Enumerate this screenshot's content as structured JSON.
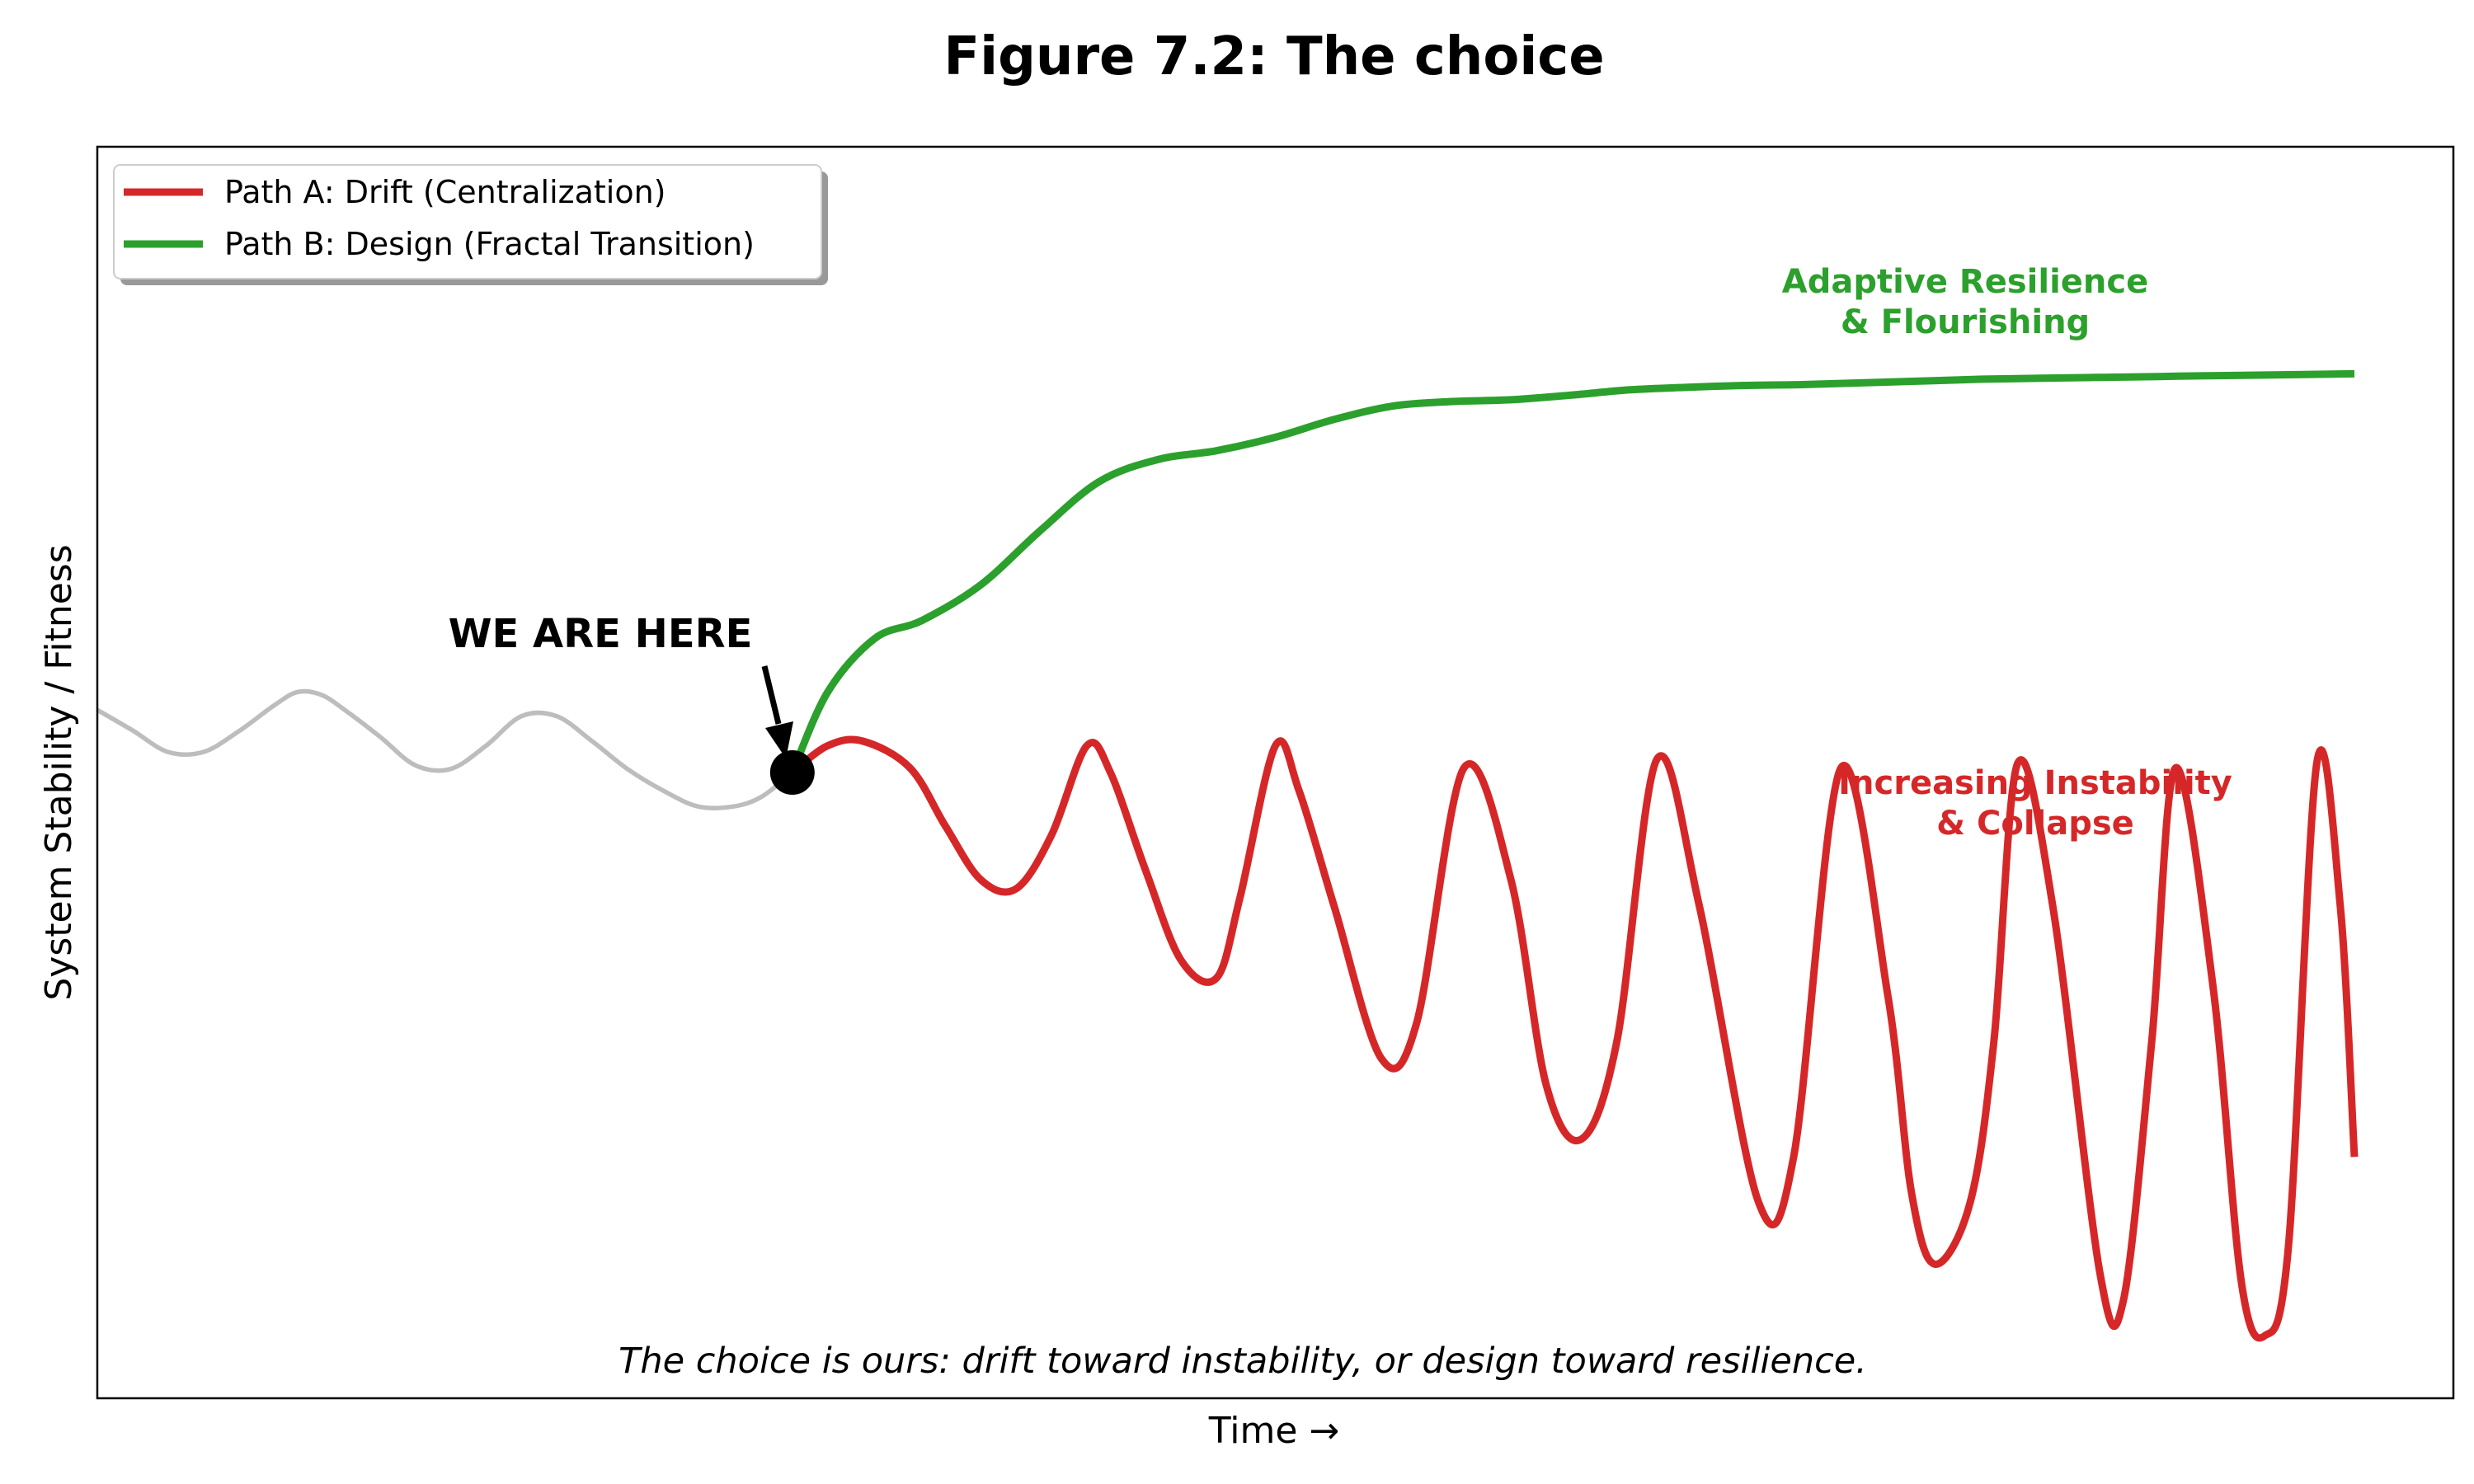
{
  "figure": {
    "title": "Figure 7.2: The choice",
    "xlabel": "Time →",
    "ylabel": "System Stability / Fitness"
  },
  "legend": {
    "items": [
      {
        "label": "Path A: Drift (Centralization)",
        "color": "#d62728"
      },
      {
        "label": "Path B: Design (Fractal Transition)",
        "color": "#2ca02c"
      }
    ]
  },
  "annotations": {
    "green_line1": "Adaptive Resilience",
    "green_line2": "& Flourishing",
    "red_line1": "Increasing Instability",
    "red_line2": "& Collapse",
    "here": "WE ARE HERE",
    "caption": "The choice is ours: drift toward instability, or design toward resilience."
  },
  "chart_data": {
    "type": "line",
    "title": "Figure 7.2: The choice",
    "xlabel": "Time →",
    "ylabel": "System Stability / Fitness",
    "xlim": [
      0,
      10
    ],
    "ylim": [
      -7,
      7
    ],
    "grid": false,
    "legend_position": "top-left",
    "branch_point": {
      "x": 2.95,
      "y": 0
    },
    "series": [
      {
        "color": "#bdbdbd",
        "points": [
          [
            0,
            0.7
          ],
          [
            0.15,
            0.47
          ],
          [
            0.3,
            0.23
          ],
          [
            0.45,
            0.23
          ],
          [
            0.6,
            0.46
          ],
          [
            0.75,
            0.75
          ],
          [
            0.85,
            0.9
          ],
          [
            0.95,
            0.87
          ],
          [
            1.05,
            0.7
          ],
          [
            1.2,
            0.4
          ],
          [
            1.35,
            0.08
          ],
          [
            1.5,
            0.04
          ],
          [
            1.65,
            0.3
          ],
          [
            1.8,
            0.63
          ],
          [
            1.95,
            0.63
          ],
          [
            2.1,
            0.35
          ],
          [
            2.25,
            0.04
          ],
          [
            2.4,
            -0.2
          ],
          [
            2.55,
            -0.38
          ],
          [
            2.7,
            -0.38
          ],
          [
            2.82,
            -0.27
          ],
          [
            2.95,
            0
          ]
        ]
      },
      {
        "name": "Path A: Drift (Centralization)",
        "color": "#d62728",
        "points": [
          [
            2.95,
            0
          ],
          [
            3.1,
            0.3
          ],
          [
            3.25,
            0.35
          ],
          [
            3.45,
            0.05
          ],
          [
            3.6,
            -0.6
          ],
          [
            3.75,
            -1.2
          ],
          [
            3.9,
            -1.3
          ],
          [
            4.05,
            -0.7
          ],
          [
            4.2,
            0.3
          ],
          [
            4.3,
            0
          ],
          [
            4.45,
            -1.1
          ],
          [
            4.6,
            -2.1
          ],
          [
            4.75,
            -2.3
          ],
          [
            4.85,
            -1.4
          ],
          [
            5.0,
            0.3
          ],
          [
            5.1,
            -0.2
          ],
          [
            5.25,
            -1.5
          ],
          [
            5.45,
            -3.2
          ],
          [
            5.6,
            -2.8
          ],
          [
            5.8,
            0.05
          ],
          [
            6.0,
            -1.2
          ],
          [
            6.15,
            -3.5
          ],
          [
            6.3,
            -4.1
          ],
          [
            6.45,
            -3
          ],
          [
            6.62,
            0.15
          ],
          [
            6.8,
            -1.5
          ],
          [
            7.05,
            -4.8
          ],
          [
            7.2,
            -4.3
          ],
          [
            7.4,
            0.05
          ],
          [
            7.6,
            -2.5
          ],
          [
            7.7,
            -4.7
          ],
          [
            7.8,
            -5.5
          ],
          [
            7.95,
            -4.8
          ],
          [
            8.05,
            -3
          ],
          [
            8.15,
            0.1
          ],
          [
            8.3,
            -1.5
          ],
          [
            8.5,
            -5.6
          ],
          [
            8.6,
            -5.9
          ],
          [
            8.72,
            -3
          ],
          [
            8.82,
            0.05
          ],
          [
            8.98,
            -2.4
          ],
          [
            9.1,
            -5.7
          ],
          [
            9.2,
            -6.3
          ],
          [
            9.3,
            -5.3
          ],
          [
            9.42,
            0.1
          ],
          [
            9.52,
            -1.5
          ],
          [
            9.58,
            -4.3
          ]
        ]
      },
      {
        "name": "Path B: Design (Fractal Transition)",
        "color": "#2ca02c",
        "points": [
          [
            2.95,
            0
          ],
          [
            3.1,
            0.9
          ],
          [
            3.3,
            1.5
          ],
          [
            3.5,
            1.7
          ],
          [
            3.75,
            2.1
          ],
          [
            4.0,
            2.7
          ],
          [
            4.25,
            3.25
          ],
          [
            4.5,
            3.5
          ],
          [
            4.75,
            3.6
          ],
          [
            5.0,
            3.75
          ],
          [
            5.25,
            3.95
          ],
          [
            5.5,
            4.1
          ],
          [
            5.75,
            4.15
          ],
          [
            6.0,
            4.17
          ],
          [
            6.25,
            4.22
          ],
          [
            6.5,
            4.28
          ],
          [
            6.75,
            4.31
          ],
          [
            7.0,
            4.33
          ],
          [
            7.25,
            4.34
          ],
          [
            7.5,
            4.36
          ],
          [
            7.75,
            4.38
          ],
          [
            8.0,
            4.4
          ],
          [
            8.25,
            4.41
          ],
          [
            8.5,
            4.42
          ],
          [
            8.75,
            4.43
          ],
          [
            9.0,
            4.44
          ],
          [
            9.3,
            4.45
          ],
          [
            9.58,
            4.46
          ]
        ]
      }
    ]
  }
}
